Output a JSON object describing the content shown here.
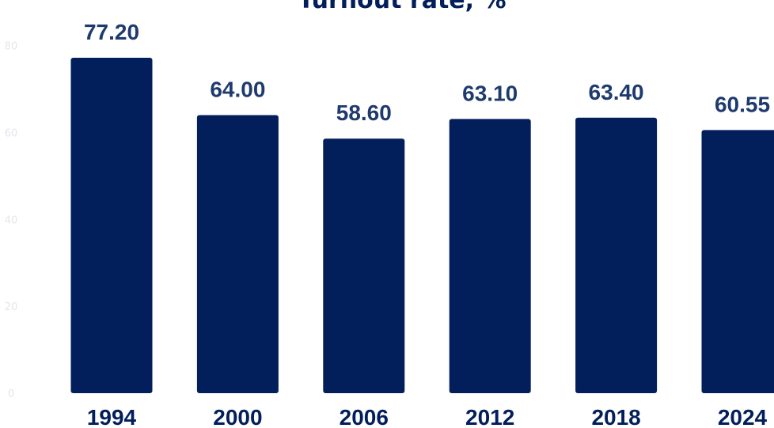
{
  "chart_data": {
    "type": "bar",
    "title": "Turnout rate, %",
    "categories": [
      "1994",
      "2000",
      "2006",
      "2012",
      "2018",
      "2024"
    ],
    "values": [
      77.2,
      64.0,
      58.6,
      63.1,
      63.4,
      60.55
    ],
    "value_labels": [
      "77.20",
      "64.00",
      "58.60",
      "63.10",
      "63.40",
      "60.55"
    ],
    "y_ticks": [
      {
        "value": 0,
        "label": "0"
      },
      {
        "value": 20,
        "label": "20"
      },
      {
        "value": 40,
        "label": "40"
      },
      {
        "value": 60,
        "label": "60"
      },
      {
        "value": 80,
        "label": "80"
      }
    ],
    "ylim": [
      0,
      80
    ],
    "grid": false,
    "xlabel": "",
    "ylabel": ""
  },
  "colors": {
    "bar": "#021f5c",
    "title": "#021f5c",
    "value_label": "#1f3a6e",
    "x_tick": "#021f5c",
    "y_tick": "#e3e6ec",
    "background": "#ffffff"
  }
}
